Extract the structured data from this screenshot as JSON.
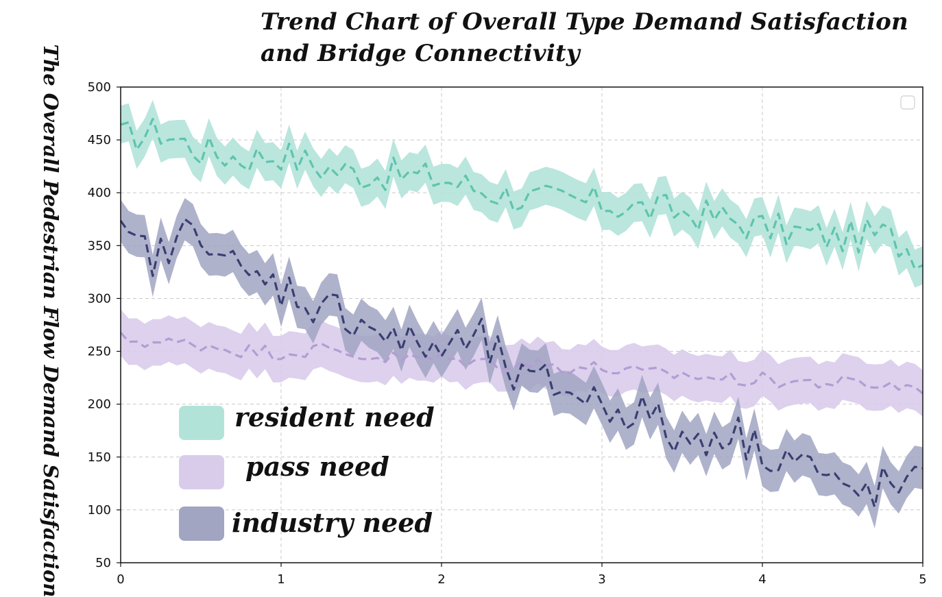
{
  "chart_data": {
    "type": "line",
    "title": "Trend Chart of Overall Type Demand Satisfaction and Bridge Connectivity",
    "title_lines": [
      "Trend Chart of Overall Type Demand Satisfaction",
      "and Bridge Connectivity"
    ],
    "xlabel": "",
    "ylabel": "The Overall Pedestrian Flow Demand Satisfaction",
    "xlim": [
      0,
      5
    ],
    "ylim": [
      50,
      500
    ],
    "x_ticks": [
      "0",
      "1",
      "2",
      "3",
      "4",
      "5"
    ],
    "y_ticks": [
      "50",
      "100",
      "150",
      "200",
      "250",
      "300",
      "350",
      "400",
      "450",
      "500"
    ],
    "grid": true,
    "legend_placement": "lower-left",
    "x": [
      0,
      0.25,
      0.5,
      0.75,
      1,
      1.25,
      1.5,
      1.75,
      2,
      2.25,
      2.5,
      2.75,
      3,
      3.25,
      3.5,
      3.75,
      4,
      4.25,
      4.5,
      4.75,
      5
    ],
    "series": [
      {
        "name": "resident need",
        "color": "#5ec4ad",
        "band_color": "#b2e3d9",
        "values": [
          452,
          458,
          440,
          433,
          437,
          424,
          418,
          417,
          413,
          403,
          395,
          392,
          390,
          385,
          382,
          376,
          367,
          362,
          357,
          361,
          340
        ],
        "band": 18
      },
      {
        "name": "pass need",
        "color": "#b29dd3",
        "band_color": "#d9cceb",
        "values": [
          262,
          258,
          257,
          251,
          249,
          252,
          246,
          243,
          243,
          240,
          239,
          236,
          234,
          229,
          228,
          224,
          223,
          221,
          220,
          218,
          216
        ],
        "band": 22
      },
      {
        "name": "industry need",
        "color": "#3a3f70",
        "band_color": "#a1a5c2",
        "values": [
          354,
          338,
          372,
          318,
          312,
          292,
          282,
          256,
          253,
          259,
          218,
          218,
          200,
          193,
          163,
          177,
          158,
          149,
          113,
          121,
          120
        ],
        "band": 20
      }
    ]
  },
  "legend": {
    "items": [
      {
        "label": "resident need",
        "color": "#b2e3d9"
      },
      {
        "label": "pass need",
        "color": "#d9cceb"
      },
      {
        "label": "industry need",
        "color": "#a1a5c2"
      }
    ]
  }
}
